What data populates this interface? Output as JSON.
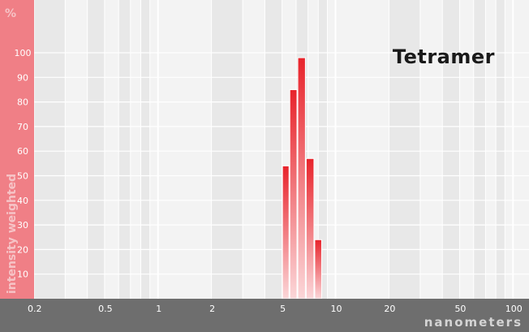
{
  "chart_data": {
    "type": "bar",
    "title": "Tetramer",
    "xlabel": "nanometers",
    "ylabel": "intensity weighted",
    "y_unit": "%",
    "x_scale": "log",
    "xlim": [
      0.15,
      130
    ],
    "ylim": [
      0,
      100
    ],
    "x_ticks": [
      0.2,
      0.5,
      1,
      2,
      5,
      10,
      20,
      50,
      100
    ],
    "x_tick_labels": [
      "0.2",
      "0.5",
      "1",
      "2",
      "5",
      "10",
      "20",
      "50",
      "100"
    ],
    "y_ticks": [
      10,
      20,
      30,
      40,
      50,
      60,
      70,
      80,
      90,
      100
    ],
    "y_tick_labels": [
      "10",
      "20",
      "30",
      "40",
      "50",
      "60",
      "70",
      "80",
      "90",
      "100"
    ],
    "grid": true,
    "bars": [
      {
        "x_from": 5.0,
        "x_to": 5.5,
        "value": 54
      },
      {
        "x_from": 5.5,
        "x_to": 6.1,
        "value": 85
      },
      {
        "x_from": 6.1,
        "x_to": 6.8,
        "value": 98
      },
      {
        "x_from": 6.8,
        "x_to": 7.6,
        "value": 57
      },
      {
        "x_from": 7.6,
        "x_to": 8.4,
        "value": 24
      }
    ],
    "colors": {
      "bar": "#e8232b",
      "axis_band": "#f07f86",
      "bottom_band": "#6e6e6e",
      "grid": "#ffffff",
      "background": "#efefef"
    }
  }
}
